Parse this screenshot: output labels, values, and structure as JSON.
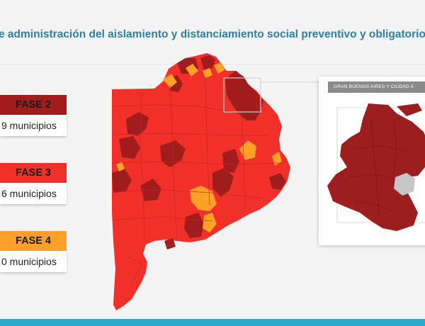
{
  "title": "e administración del aislamiento y distanciamiento social preventivo y obligatorio",
  "legend": [
    {
      "phase": "FASE 2",
      "count": "9 municipios",
      "color": "#a11d1d",
      "text_color": "#1a1a1a"
    },
    {
      "phase": "FASE 3",
      "count": "6 municipios",
      "color": "#f1302a",
      "text_color": "#1a1a1a"
    },
    {
      "phase": "FASE 4",
      "count": "0 municipios",
      "color": "#ffa028",
      "text_color": "#1a1a1a"
    }
  ],
  "inset": {
    "title": "GRAN BUENOS AIRES Y CIUDAD A",
    "colors": {
      "main": "#9d1e1e",
      "city": "#c6c6c6"
    }
  },
  "map_colors": {
    "fase2": "#a11d1d",
    "fase3": "#f1302a",
    "fase4": "#ffa028",
    "borders": "#c42323"
  },
  "accent_bar": "#2fa9c9"
}
